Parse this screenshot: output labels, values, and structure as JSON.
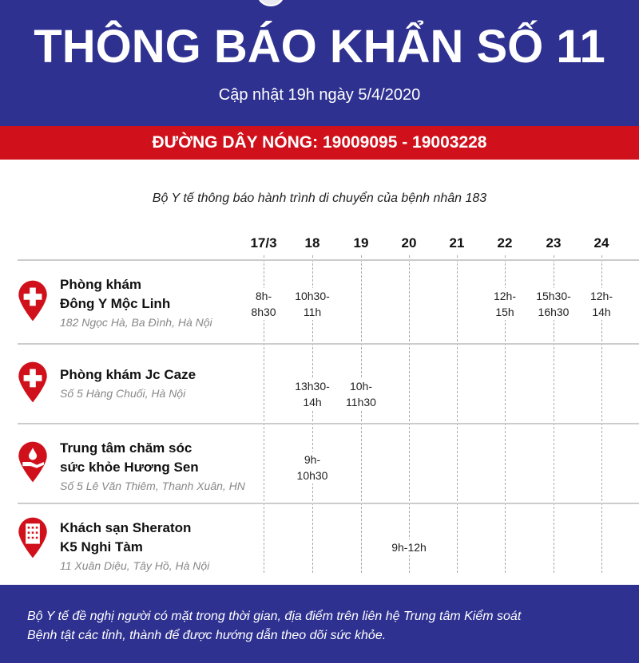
{
  "header": {
    "title": "THÔNG BÁO KHẨN SỐ 11",
    "updated": "Cập nhật 19h ngày 5/4/2020",
    "hotline": "ĐƯỜNG DÂY NÓNG: 19009095 - 19003228"
  },
  "intro": "Bộ Y tế thông báo hành trình di chuyển của bệnh nhân 183",
  "days": [
    "17/3",
    "18",
    "19",
    "20",
    "21",
    "22",
    "23",
    "24"
  ],
  "places": [
    {
      "name1": "Phòng khám",
      "name2": "Đông Y Mộc Linh",
      "address": "182 Ngọc Hà, Ba Đình, Hà Nội",
      "icon": "medical-cross-icon",
      "times": [
        {
          "day": "17/3",
          "l1": "8h-",
          "l2": "8h30"
        },
        {
          "day": "18",
          "l1": "10h30-",
          "l2": "11h"
        },
        {
          "day": "22",
          "l1": "12h-",
          "l2": "15h"
        },
        {
          "day": "23",
          "l1": "15h30-",
          "l2": "16h30"
        },
        {
          "day": "24",
          "l1": "12h-",
          "l2": "14h"
        }
      ]
    },
    {
      "name1": "Phòng khám Jc Caze",
      "name2": "",
      "address": "Số 5 Hàng Chuối, Hà Nội",
      "icon": "medical-cross-icon",
      "times": [
        {
          "day": "18",
          "l1": "13h30-",
          "l2": "14h"
        },
        {
          "day": "19",
          "l1": "10h-",
          "l2": "11h30"
        }
      ]
    },
    {
      "name1": "Trung tâm chăm sóc",
      "name2": "sức khỏe Hương Sen",
      "address": "Số 5 Lê Văn Thiêm, Thanh Xuân, HN",
      "icon": "care-hand-icon",
      "times": [
        {
          "day": "18",
          "l1": "9h-",
          "l2": "10h30"
        }
      ]
    },
    {
      "name1": "Khách sạn Sheraton",
      "name2": "K5 Nghi Tàm",
      "address": "11 Xuân Diệu, Tây Hồ, Hà Nội",
      "icon": "hotel-icon",
      "times": [
        {
          "day": "20",
          "l1": "9h-12h",
          "l2": ""
        }
      ]
    }
  ],
  "footer": {
    "line1": "Bộ Y tế đề nghị người có mặt trong thời gian, địa điểm trên liên hệ Trung tâm Kiểm soát",
    "line2": "Bệnh tật các tỉnh, thành để được hướng dẫn theo dõi sức khỏe."
  },
  "colors": {
    "blue": "#2e3190",
    "red": "#d0111b"
  }
}
